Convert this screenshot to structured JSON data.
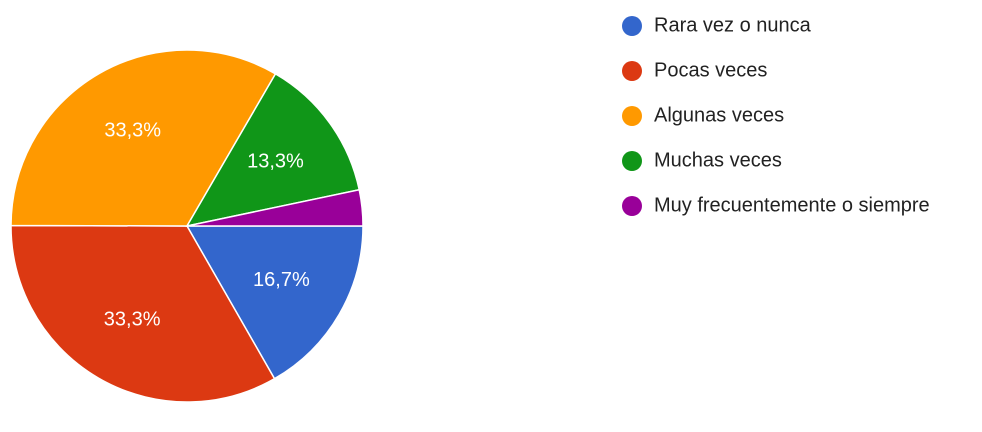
{
  "chart_data": {
    "type": "pie",
    "categories": [
      "Rara vez o nunca",
      "Pocas veces",
      "Algunas veces",
      "Muchas veces",
      "Muy frecuentemente o siempre"
    ],
    "values": [
      16.7,
      33.3,
      33.3,
      13.3,
      3.3
    ],
    "value_labels": [
      "16,7%",
      "33,3%",
      "33,3%",
      "13,3%",
      null
    ],
    "colors": [
      "#3366cc",
      "#dc3912",
      "#ff9900",
      "#109618",
      "#990099"
    ],
    "legend": "right"
  }
}
